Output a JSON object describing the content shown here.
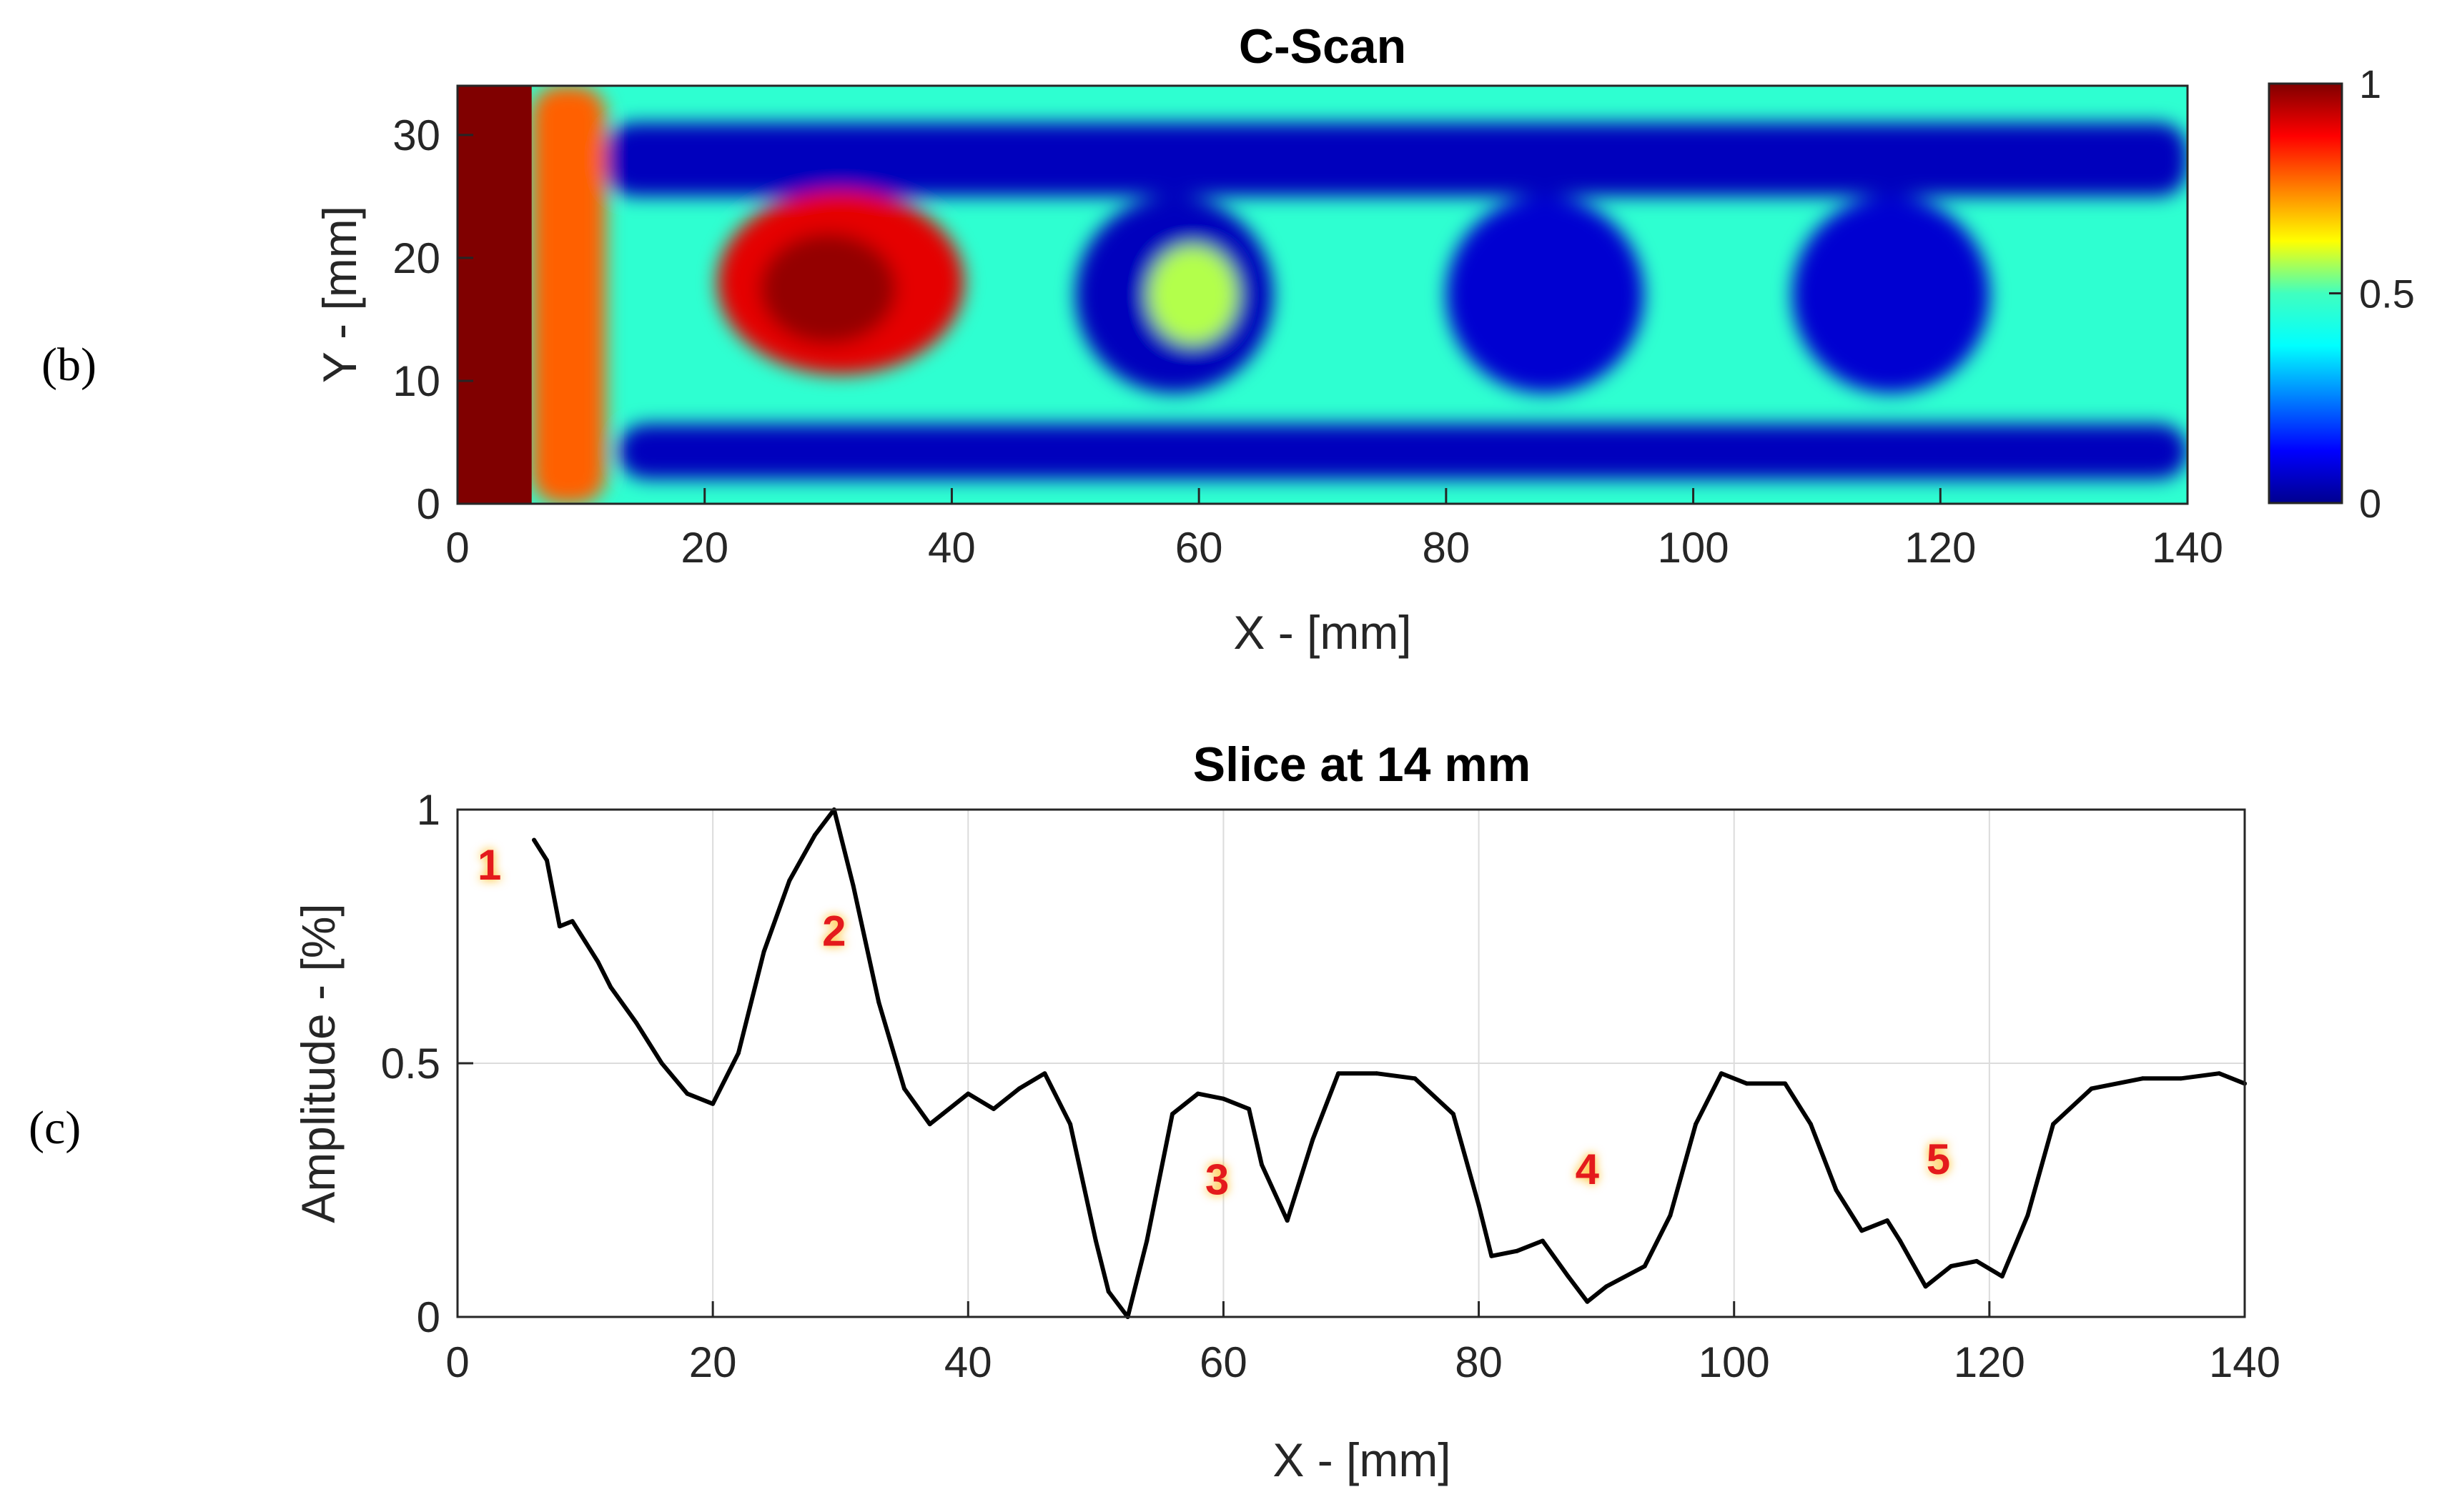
{
  "chart_data": [
    {
      "panel_label": "(b)",
      "type": "heatmap",
      "title": "C-Scan",
      "xlabel": "X - [mm]",
      "ylabel": "Y - [mm]",
      "xlim": [
        0,
        140
      ],
      "ylim": [
        0,
        34
      ],
      "xticks": [
        "0",
        "20",
        "40",
        "60",
        "80",
        "100",
        "120",
        "140"
      ],
      "yticks": [
        "0",
        "10",
        "20",
        "30"
      ],
      "colormap": "jet",
      "colorbar": {
        "range": [
          0,
          1
        ],
        "ticks": [
          "0",
          "0.5",
          "1"
        ]
      },
      "background_level": 0.42,
      "features": [
        {
          "name": "edge-saturation",
          "shape": "rect",
          "x": [
            0,
            6
          ],
          "y": [
            0,
            34
          ],
          "value": 1.0
        },
        {
          "name": "edge-gradient",
          "shape": "rect",
          "x": [
            6,
            12
          ],
          "y": [
            0,
            34
          ],
          "value": 0.78
        },
        {
          "name": "upper-band",
          "shape": "rect",
          "x": [
            12,
            140
          ],
          "y": [
            25,
            31
          ],
          "value": 0.06
        },
        {
          "name": "lower-band",
          "shape": "rect",
          "x": [
            13,
            140
          ],
          "y": [
            2,
            6.5
          ],
          "value": 0.06
        },
        {
          "name": "defect-2",
          "shape": "ellipse",
          "cx": 31,
          "cy": 18,
          "rx": 10,
          "ry": 7.5,
          "value": 0.9
        },
        {
          "name": "defect-3",
          "shape": "ring",
          "cx": 58,
          "cy": 17,
          "rx": 8,
          "ry": 8,
          "rim_value": 0.06,
          "core_value": 0.55
        },
        {
          "name": "defect-4",
          "shape": "ellipse",
          "cx": 88,
          "cy": 17,
          "rx": 8,
          "ry": 8,
          "value": 0.08
        },
        {
          "name": "defect-5",
          "shape": "ellipse",
          "cx": 116,
          "cy": 17,
          "rx": 8,
          "ry": 8,
          "value": 0.08
        }
      ]
    },
    {
      "panel_label": "(c)",
      "type": "line",
      "title": "Slice at 14 mm",
      "xlabel": "X - [mm]",
      "ylabel": "Amplitude - [%]",
      "xlim": [
        0,
        140
      ],
      "ylim": [
        0,
        1
      ],
      "xticks": [
        "0",
        "20",
        "40",
        "60",
        "80",
        "100",
        "120",
        "140"
      ],
      "yticks": [
        "0",
        "0.5",
        "1"
      ],
      "grid": true,
      "series": [
        {
          "name": "slice",
          "x": [
            6,
            7,
            8,
            9,
            10,
            11,
            12,
            14,
            16,
            18,
            20,
            22,
            24,
            26,
            28,
            29.5,
            31,
            33,
            35,
            37,
            38,
            40,
            42,
            44,
            46,
            48,
            50,
            51,
            52.5,
            54,
            56,
            58,
            60,
            62,
            63,
            65,
            67,
            69,
            72,
            75,
            78,
            80,
            81,
            83,
            85,
            87,
            88.5,
            90,
            93,
            95,
            97,
            99,
            101,
            104,
            106,
            108,
            110,
            112,
            113,
            115,
            117,
            119,
            121,
            123,
            125,
            128,
            132,
            135,
            138,
            140
          ],
          "y": [
            0.94,
            0.9,
            0.77,
            0.78,
            0.74,
            0.7,
            0.65,
            0.58,
            0.5,
            0.44,
            0.42,
            0.52,
            0.72,
            0.86,
            0.95,
            1.0,
            0.85,
            0.62,
            0.45,
            0.38,
            0.4,
            0.44,
            0.41,
            0.45,
            0.48,
            0.38,
            0.15,
            0.05,
            0.0,
            0.15,
            0.4,
            0.44,
            0.43,
            0.41,
            0.3,
            0.19,
            0.35,
            0.48,
            0.48,
            0.47,
            0.4,
            0.22,
            0.12,
            0.13,
            0.15,
            0.08,
            0.03,
            0.06,
            0.1,
            0.2,
            0.38,
            0.48,
            0.46,
            0.46,
            0.38,
            0.25,
            0.17,
            0.19,
            0.15,
            0.06,
            0.1,
            0.11,
            0.08,
            0.2,
            0.38,
            0.45,
            0.47,
            0.47,
            0.48,
            0.46
          ]
        }
      ],
      "annotations": [
        {
          "label": "1",
          "x": 2.5,
          "y": 0.89
        },
        {
          "label": "2",
          "x": 29.5,
          "y": 0.76
        },
        {
          "label": "3",
          "x": 59.5,
          "y": 0.27
        },
        {
          "label": "4",
          "x": 88.5,
          "y": 0.29
        },
        {
          "label": "5",
          "x": 116,
          "y": 0.31
        }
      ]
    }
  ]
}
